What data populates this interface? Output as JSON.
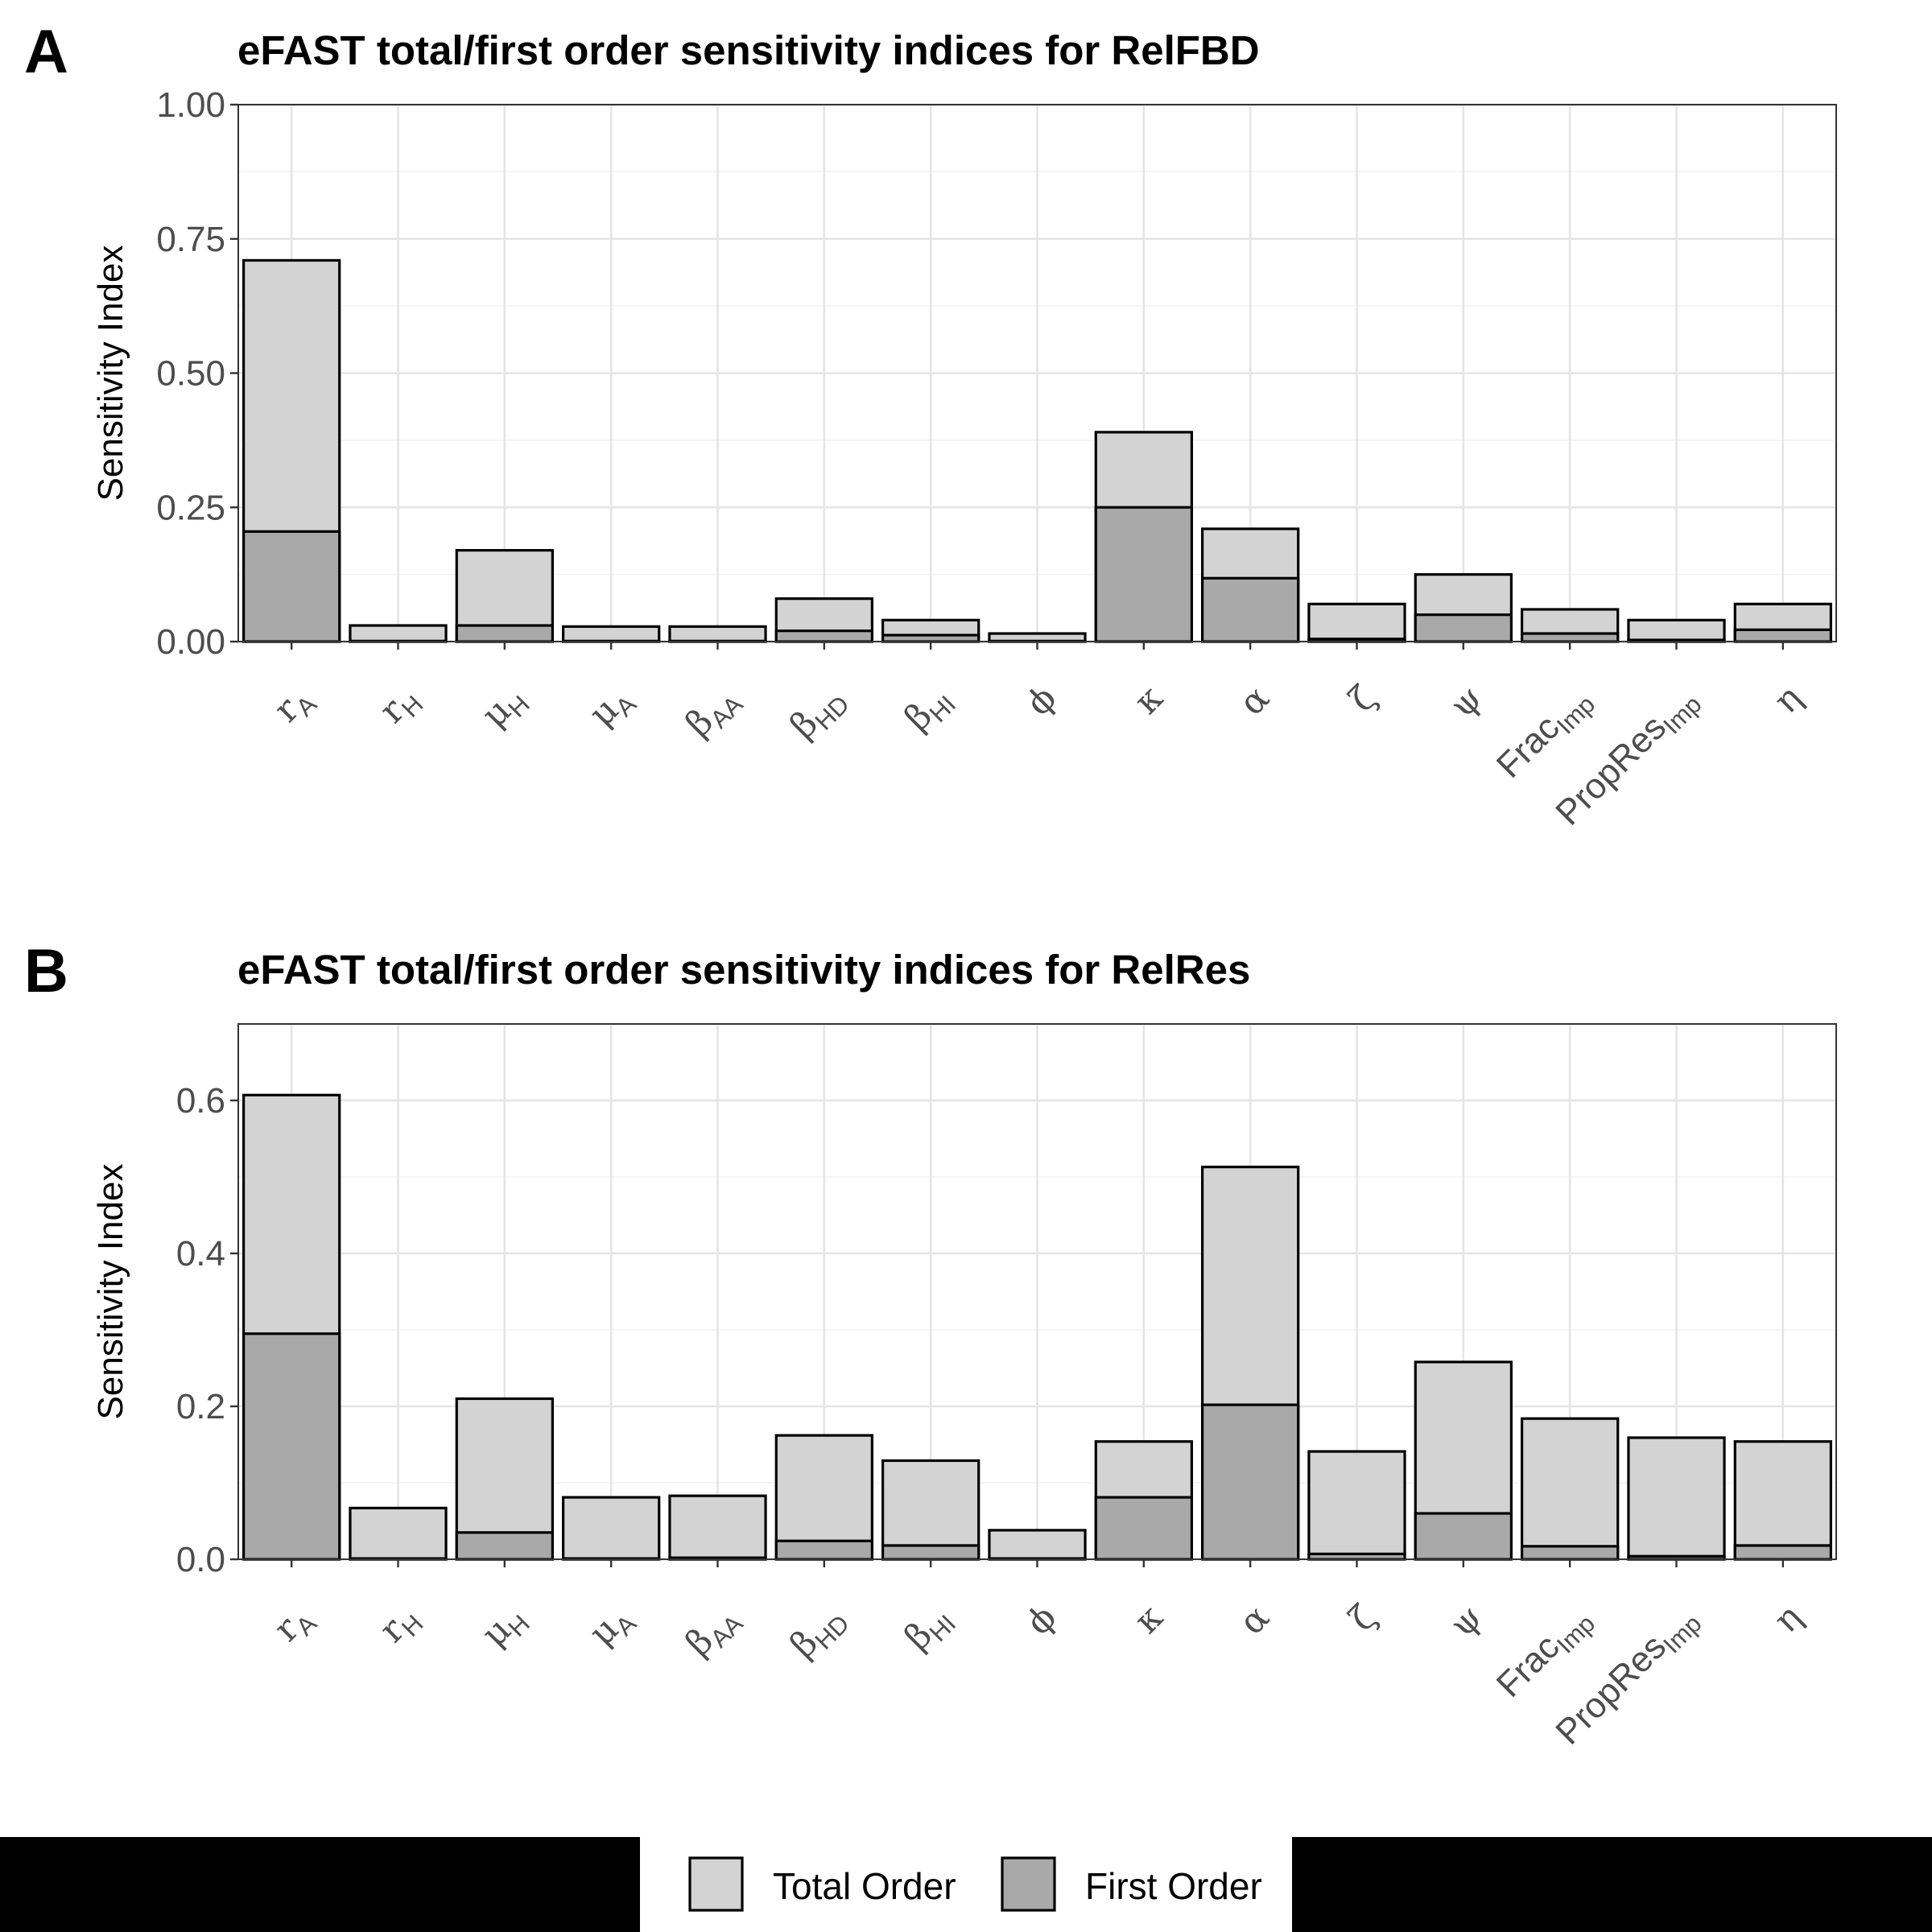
{
  "legend": {
    "items": [
      {
        "label": "Total Order",
        "color": "#d3d3d3"
      },
      {
        "label": "First Order",
        "color": "#a9a9a9"
      }
    ]
  },
  "chart_data": [
    {
      "type": "bar",
      "panel": "A",
      "title": "eFAST total/first order sensitivity indices for RelFBD",
      "xlabel": "",
      "ylabel": "Sensitivity Index",
      "ylim": [
        0,
        1.0
      ],
      "yticks": [
        "0.00",
        "0.25",
        "0.50",
        "0.75",
        "1.00"
      ],
      "grid": true,
      "categories": [
        {
          "main": "r",
          "sub": "A"
        },
        {
          "main": "r",
          "sub": "H"
        },
        {
          "main": "μ",
          "sub": "H"
        },
        {
          "main": "μ",
          "sub": "A"
        },
        {
          "main": "β",
          "sub": "AA"
        },
        {
          "main": "β",
          "sub": "HD"
        },
        {
          "main": "β",
          "sub": "HI"
        },
        {
          "main": "ϕ",
          "sub": ""
        },
        {
          "main": "κ",
          "sub": ""
        },
        {
          "main": "α",
          "sub": ""
        },
        {
          "main": "ζ",
          "sub": ""
        },
        {
          "main": "ψ",
          "sub": ""
        },
        {
          "main": "Frac",
          "sub": "Imp"
        },
        {
          "main": "PropRes",
          "sub": "Imp"
        },
        {
          "main": "η",
          "sub": ""
        }
      ],
      "series": [
        {
          "name": "Total Order",
          "values": [
            0.71,
            0.03,
            0.17,
            0.028,
            0.028,
            0.08,
            0.04,
            0.015,
            0.39,
            0.21,
            0.07,
            0.125,
            0.06,
            0.04,
            0.07
          ]
        },
        {
          "name": "First Order",
          "values": [
            0.205,
            0.001,
            0.03,
            0.001,
            0.001,
            0.02,
            0.012,
            0.001,
            0.25,
            0.118,
            0.005,
            0.05,
            0.015,
            0.003,
            0.022
          ]
        }
      ]
    },
    {
      "type": "bar",
      "panel": "B",
      "title": "eFAST total/first order sensitivity indices for RelRes",
      "xlabel": "",
      "ylabel": "Sensitivity Index",
      "ylim": [
        0,
        0.7
      ],
      "yticks": [
        "0.0",
        "0.2",
        "0.4",
        "0.6"
      ],
      "grid": true,
      "categories": [
        {
          "main": "r",
          "sub": "A"
        },
        {
          "main": "r",
          "sub": "H"
        },
        {
          "main": "μ",
          "sub": "H"
        },
        {
          "main": "μ",
          "sub": "A"
        },
        {
          "main": "β",
          "sub": "AA"
        },
        {
          "main": "β",
          "sub": "HD"
        },
        {
          "main": "β",
          "sub": "HI"
        },
        {
          "main": "ϕ",
          "sub": ""
        },
        {
          "main": "κ",
          "sub": ""
        },
        {
          "main": "α",
          "sub": ""
        },
        {
          "main": "ζ",
          "sub": ""
        },
        {
          "main": "ψ",
          "sub": ""
        },
        {
          "main": "Frac",
          "sub": "Imp"
        },
        {
          "main": "PropRes",
          "sub": "Imp"
        },
        {
          "main": "η",
          "sub": ""
        }
      ],
      "series": [
        {
          "name": "Total Order",
          "values": [
            0.607,
            0.067,
            0.21,
            0.081,
            0.083,
            0.162,
            0.129,
            0.038,
            0.154,
            0.513,
            0.141,
            0.258,
            0.184,
            0.159,
            0.154
          ]
        },
        {
          "name": "First Order",
          "values": [
            0.295,
            0.001,
            0.035,
            0.001,
            0.002,
            0.024,
            0.018,
            0.001,
            0.081,
            0.202,
            0.007,
            0.06,
            0.017,
            0.004,
            0.018
          ]
        }
      ]
    }
  ]
}
